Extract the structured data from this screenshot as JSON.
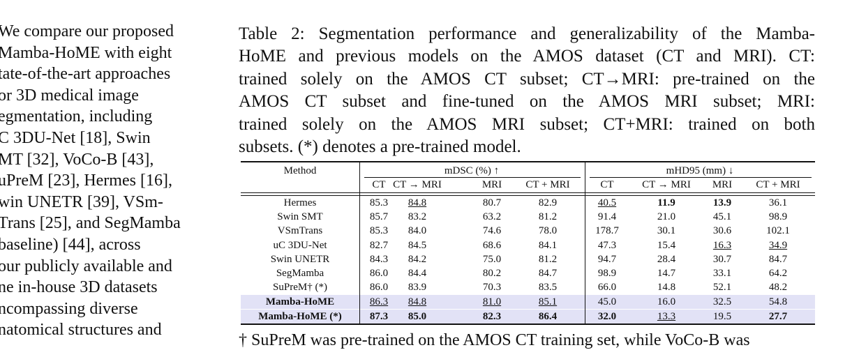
{
  "left_column": [
    "We compare our proposed",
    "Mamba-HoME with eight",
    "tate-of-the-art approaches",
    "or 3D medical image",
    "egmentation, including",
    "C 3DU-Net [18], Swin",
    "MT [32], VoCo-B [43],",
    "uPreM [23], Hermes [16],",
    "win UNETR [39], VSm-",
    "Trans [25], and SegMamba",
    "baseline) [44], across",
    "our publicly available and",
    "ne in-house 3D datasets",
    "ncompassing diverse",
    "natomical structures and"
  ],
  "caption": [
    "Table 2: Segmentation performance and generalizability of the Mamba-",
    "HoME and previous models on the AMOS dataset (CT and MRI). CT:",
    "trained solely on the AMOS CT subset; CT→MRI: pre-trained on the",
    "AMOS CT subset and fine-tuned on the AMOS MRI subset; MRI:",
    "trained solely on the AMOS MRI subset; CT+MRI: trained on both",
    "subsets. (*) denotes a pre-trained model."
  ],
  "table": {
    "method_header": "Method",
    "groups": [
      "mDSC (%) ↑",
      "mHD95 (mm) ↓"
    ],
    "subheaders": [
      "CT",
      "CT → MRI",
      "MRI",
      "CT + MRI",
      "CT",
      "CT → MRI",
      "MRI",
      "CT + MRI"
    ],
    "rows": [
      {
        "cells": [
          "Hermes",
          "85.3",
          "84.8",
          "80.7",
          "82.9",
          "40.5",
          "11.9",
          "13.9",
          "36.1"
        ],
        "bold": [
          6,
          7
        ],
        "underline": [
          2,
          5
        ],
        "highlight": false
      },
      {
        "cells": [
          "Swin SMT",
          "85.7",
          "83.2",
          "63.2",
          "81.2",
          "91.4",
          "21.0",
          "45.1",
          "98.9"
        ],
        "bold": [],
        "underline": [],
        "highlight": false
      },
      {
        "cells": [
          "VSmTrans",
          "85.3",
          "84.0",
          "74.6",
          "78.0",
          "178.7",
          "30.1",
          "30.6",
          "102.1"
        ],
        "bold": [],
        "underline": [],
        "highlight": false
      },
      {
        "cells": [
          "uC 3DU-Net",
          "82.7",
          "84.5",
          "68.6",
          "84.1",
          "47.3",
          "15.4",
          "16.3",
          "34.9"
        ],
        "bold": [],
        "underline": [
          7,
          8
        ],
        "highlight": false
      },
      {
        "cells": [
          "Swin UNETR",
          "84.3",
          "84.2",
          "75.0",
          "81.2",
          "94.7",
          "28.4",
          "30.7",
          "84.7"
        ],
        "bold": [],
        "underline": [],
        "highlight": false
      },
      {
        "cells": [
          "SegMamba",
          "86.0",
          "84.4",
          "80.2",
          "84.7",
          "98.9",
          "14.7",
          "33.1",
          "64.2"
        ],
        "bold": [],
        "underline": [],
        "highlight": false
      },
      {
        "cells": [
          "SuPreM† (*)",
          "86.0",
          "83.9",
          "70.3",
          "83.5",
          "66.0",
          "14.8",
          "52.1",
          "48.2"
        ],
        "bold": [],
        "underline": [],
        "highlight": false
      },
      {
        "cells": [
          "Mamba-HoME",
          "86.3",
          "84.8",
          "81.0",
          "85.1",
          "45.0",
          "16.0",
          "32.5",
          "54.8"
        ],
        "bold": [
          0
        ],
        "underline": [
          1,
          2,
          3,
          4
        ],
        "highlight": true
      },
      {
        "cells": [
          "Mamba-HoME (*)",
          "87.3",
          "85.0",
          "82.3",
          "86.4",
          "32.0",
          "13.3",
          "19.5",
          "27.7"
        ],
        "bold": [
          0,
          1,
          2,
          3,
          4,
          5,
          8
        ],
        "underline": [
          6
        ],
        "highlight": true
      }
    ]
  },
  "footnote": "† SuPreM was pre-trained on the AMOS CT training set, while VoCo-B was"
}
